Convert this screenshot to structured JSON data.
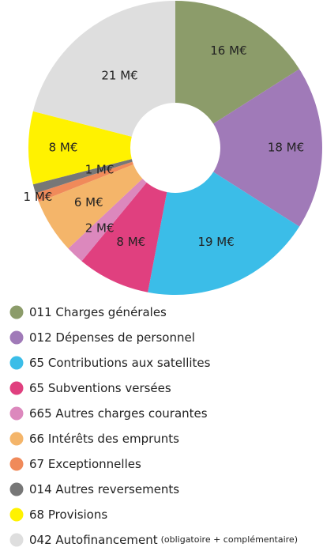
{
  "chart_data": {
    "type": "donut",
    "categories": [
      "011 Charges générales",
      "012 Dépenses de personnel",
      "65 Contributions aux satellites",
      "65 Subventions versées",
      "665 Autres charges courantes",
      "66 Intérêts des emprunts",
      "67 Exceptionnelles",
      "014 Autres reversements",
      "68 Provisions",
      "042 Autofinancement"
    ],
    "category_notes": [
      null,
      null,
      null,
      null,
      null,
      null,
      null,
      null,
      null,
      "(obligatoire + complémentaire)"
    ],
    "values": [
      16,
      18,
      19,
      8,
      2,
      6,
      1,
      1,
      8,
      21
    ],
    "value_labels": [
      "16 M€",
      "18 M€",
      "19 M€",
      "8 M€",
      "2 M€",
      "6 M€",
      "1 M€",
      "1 M€",
      "8 M€",
      "21 M€"
    ],
    "colors": [
      "#8c9c6a",
      "#a07ab8",
      "#3bbde8",
      "#e0407f",
      "#dc88bd",
      "#f4b56a",
      "#f08a5a",
      "#777777",
      "#fff200",
      "#dedede"
    ]
  }
}
